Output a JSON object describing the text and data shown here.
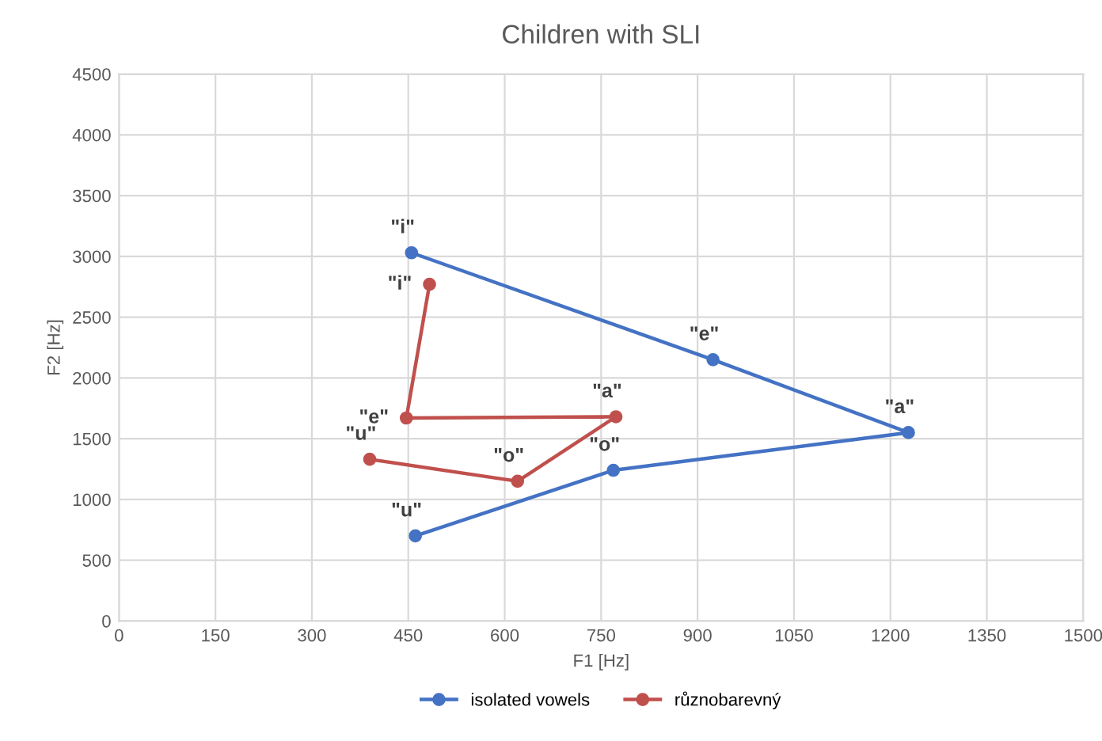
{
  "chart_data": {
    "type": "line",
    "title": "Children with SLI",
    "xlabel": "F1 [Hz]",
    "ylabel": "F2 [Hz]",
    "series": [
      {
        "name": "isolated vowels",
        "color": "#4472c4",
        "x": [
          455,
          924,
          1228,
          769,
          461
        ],
        "values": [
          3030,
          2150,
          1550,
          1240,
          700
        ]
      },
      {
        "name": "různobarevný",
        "color": "#c0504d",
        "x": [
          483,
          447,
          773,
          620,
          390
        ],
        "values": [
          2770,
          1670,
          1680,
          1150,
          1330
        ]
      }
    ],
    "annotations": [
      {
        "text": "\"i\"",
        "x": 455,
        "y": 3030
      },
      {
        "text": "\"e\"",
        "x": 924,
        "y": 2150
      },
      {
        "text": "\"a\"",
        "x": 1228,
        "y": 1550
      },
      {
        "text": "\"o\"",
        "x": 769,
        "y": 1240
      },
      {
        "text": "\"u\"",
        "x": 461,
        "y": 700
      },
      {
        "text": "\"i\"",
        "x": 483,
        "y": 2770
      },
      {
        "text": "\"e\"",
        "x": 447,
        "y": 1670
      },
      {
        "text": "\"a\"",
        "x": 773,
        "y": 1680
      },
      {
        "text": "\"o\"",
        "x": 620,
        "y": 1150
      },
      {
        "text": "\"u\"",
        "x": 390,
        "y": 1330
      }
    ],
    "xlim": [
      0,
      1500
    ],
    "xticks": [
      0,
      150,
      300,
      450,
      600,
      750,
      900,
      1050,
      1200,
      1350,
      1500
    ],
    "ylim": [
      0,
      4500
    ],
    "yticks": [
      0,
      500,
      1000,
      1500,
      2000,
      2500,
      3000,
      3500,
      4000,
      4500
    ],
    "grid": true,
    "legend": "bottom",
    "marker": "circle",
    "line_style": "solid"
  }
}
